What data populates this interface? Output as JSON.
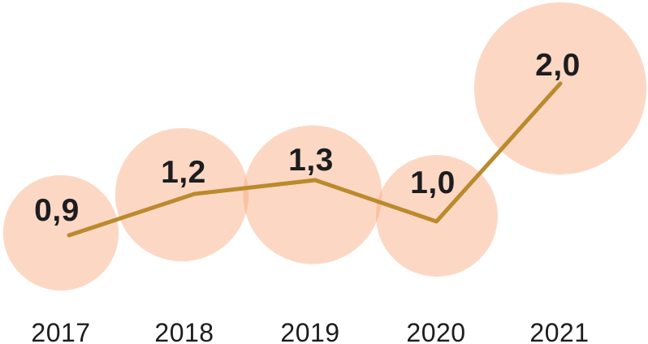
{
  "chart_data": {
    "type": "line",
    "variant": "line-with-proportional-bubbles",
    "title": "",
    "xlabel": "",
    "ylabel": "",
    "categories": [
      "2017",
      "2018",
      "2019",
      "2020",
      "2021"
    ],
    "values": [
      0.9,
      1.2,
      1.3,
      1.0,
      2.0
    ],
    "point_labels": [
      "0,9",
      "1,2",
      "1,3",
      "1,0",
      "2,0"
    ],
    "decimal_separator": ",",
    "ylim": [
      0,
      2.6
    ],
    "axes_visible": false,
    "grid": false,
    "legend": null,
    "bubble_area_proportional_to_value": true,
    "colors": {
      "bubble_fill": "#F7A172",
      "line": "#BA8A2C",
      "value_text": "#1D1D1F",
      "year_text": "#1D1D1F",
      "background": "#FFFFFF"
    }
  }
}
